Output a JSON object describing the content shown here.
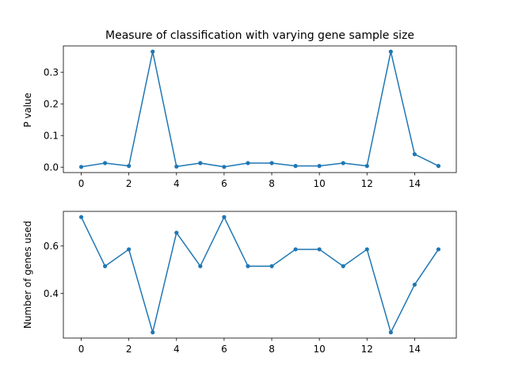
{
  "chart_data": [
    {
      "type": "line",
      "title": "Measure of classification with varying gene sample size",
      "xlabel": "",
      "ylabel": "P value",
      "x": [
        0,
        1,
        2,
        3,
        4,
        5,
        6,
        7,
        8,
        9,
        10,
        11,
        12,
        13,
        14,
        15
      ],
      "series": [
        {
          "values": [
            0.001,
            0.013,
            0.004,
            0.365,
            0.002,
            0.013,
            0.001,
            0.013,
            0.013,
            0.004,
            0.004,
            0.013,
            0.004,
            0.365,
            0.041,
            0.004
          ],
          "color": "#1f77b4",
          "marker": "circle"
        }
      ],
      "xticks": [
        "0",
        "2",
        "4",
        "6",
        "8",
        "10",
        "12",
        "14"
      ],
      "yticks": [
        "0.0",
        "0.1",
        "0.2",
        "0.3"
      ],
      "xlim": [
        -0.75,
        15.75
      ],
      "ylim": [
        -0.017,
        0.383
      ],
      "grid": false
    },
    {
      "type": "line",
      "title": "",
      "xlabel": "",
      "ylabel": "Number of genes used",
      "x": [
        0,
        1,
        2,
        3,
        4,
        5,
        6,
        7,
        8,
        9,
        10,
        11,
        12,
        13,
        14,
        15
      ],
      "series": [
        {
          "values": [
            0.722,
            0.515,
            0.586,
            0.236,
            0.656,
            0.515,
            0.722,
            0.515,
            0.515,
            0.586,
            0.586,
            0.515,
            0.586,
            0.236,
            0.437,
            0.586
          ],
          "color": "#1f77b4",
          "marker": "circle"
        }
      ],
      "xticks": [
        "0",
        "2",
        "4",
        "6",
        "8",
        "10",
        "12",
        "14"
      ],
      "yticks": [
        "0.4",
        "0.6"
      ],
      "xlim": [
        -0.75,
        15.75
      ],
      "ylim": [
        0.212,
        0.746
      ],
      "grid": false
    }
  ]
}
